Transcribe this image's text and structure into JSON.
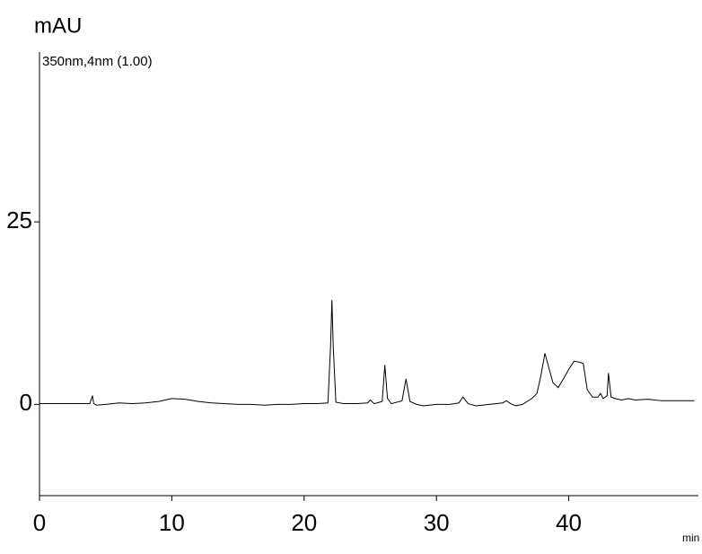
{
  "chart_data": {
    "type": "line",
    "y_label": "mAU",
    "subtitle": "350nm,4nm (1.00)",
    "x_label": "min",
    "x": [
      0,
      3.8,
      4.0,
      4.1,
      4.3,
      5,
      6,
      7,
      8,
      9,
      10,
      11,
      12,
      13,
      14,
      15,
      16,
      17,
      18,
      19,
      20,
      21,
      21.8,
      22.0,
      22.1,
      22.2,
      22.4,
      23,
      24,
      24.8,
      25.0,
      25.3,
      25.9,
      26.1,
      26.3,
      26.6,
      27.4,
      27.7,
      28.0,
      28.5,
      29,
      30,
      31,
      31.7,
      32,
      32.4,
      33,
      34,
      35,
      35.3,
      35.6,
      36,
      36.5,
      37.2,
      37.6,
      37.9,
      38.2,
      38.5,
      38.8,
      39.2,
      39.6,
      40,
      40.4,
      40.8,
      41.1,
      41.4,
      41.8,
      42.2,
      42.4,
      42.6,
      42.9,
      43.0,
      43.2,
      43.5,
      44,
      44.5,
      45,
      46,
      47,
      48,
      49.5
    ],
    "series": [
      {
        "color": "#000000",
        "values": [
          0.1,
          0.1,
          1.2,
          0.1,
          -0.1,
          0,
          0.2,
          0.1,
          0.2,
          0.4,
          0.8,
          0.7,
          0.4,
          0.2,
          0.1,
          0,
          0,
          -0.1,
          0,
          0,
          0.1,
          0.1,
          0.2,
          8,
          14.3,
          8,
          0.3,
          0.1,
          0.1,
          0.2,
          0.6,
          0.1,
          0.4,
          5.4,
          0.8,
          0.1,
          0.5,
          3.5,
          0.4,
          0,
          -0.2,
          0,
          0,
          0.2,
          1.0,
          0.1,
          -0.2,
          0,
          0.2,
          0.5,
          0.1,
          -0.2,
          0,
          0.8,
          1.5,
          4,
          7,
          5,
          3,
          2.3,
          3.5,
          4.8,
          5.9,
          5.8,
          5.6,
          2,
          1,
          1,
          1.5,
          0.8,
          1.2,
          4.3,
          1,
          0.8,
          0.6,
          0.8,
          0.6,
          0.7,
          0.5,
          0.5,
          0.5
        ]
      }
    ],
    "xlim": [
      0,
      49.8
    ],
    "ylim": [
      -12.5,
      49
    ],
    "xticks": [
      0,
      10,
      20,
      30,
      40
    ],
    "yticks": [
      0,
      25
    ]
  }
}
